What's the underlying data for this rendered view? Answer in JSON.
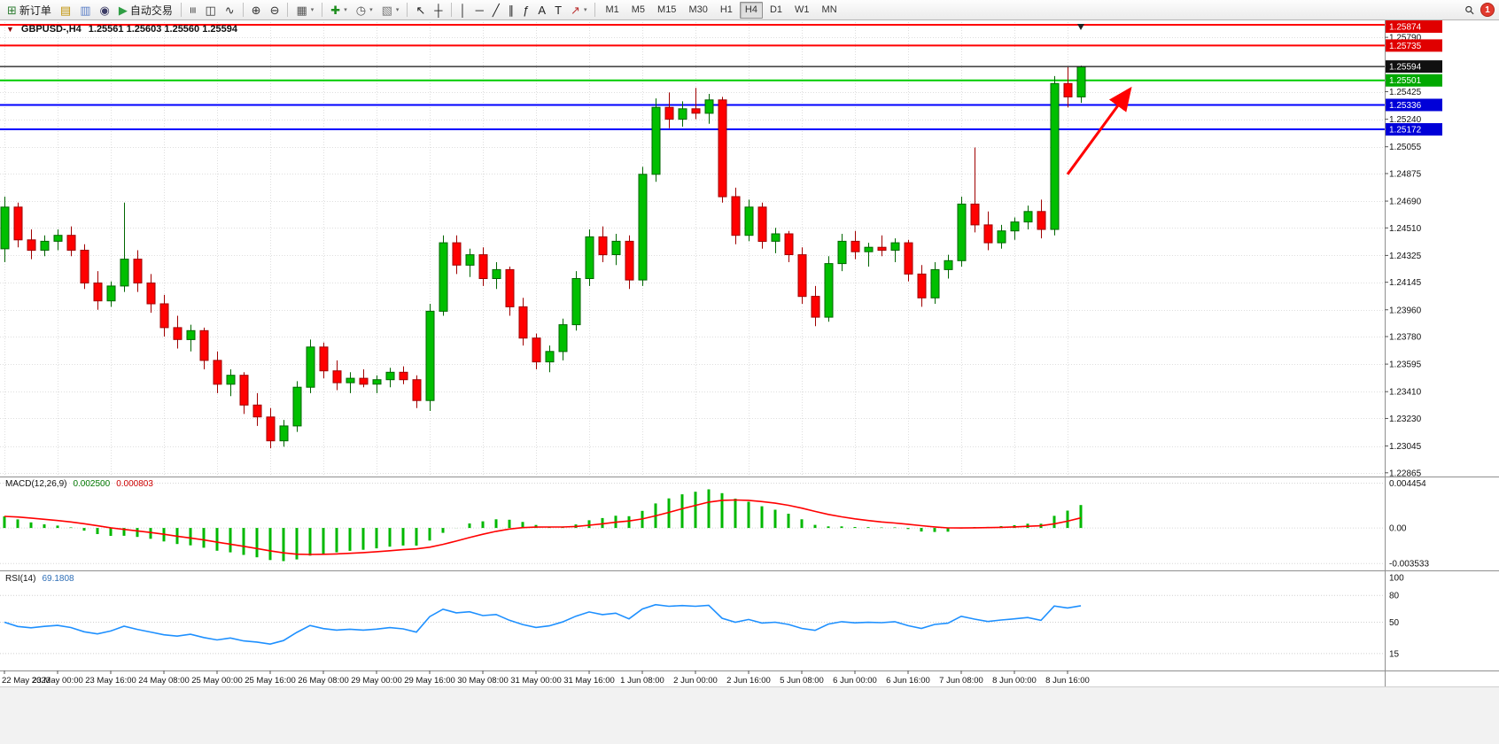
{
  "toolbar": {
    "items": [
      {
        "t": "btn",
        "name": "new-order-button",
        "glyph": "⊞",
        "color": "#2e7d32",
        "label": "新订单"
      },
      {
        "t": "btn",
        "name": "charts-button",
        "glyph": "▤",
        "color": "#c1930a"
      },
      {
        "t": "btn",
        "name": "profile-button",
        "glyph": "▥",
        "color": "#5b7fc7"
      },
      {
        "t": "btn",
        "name": "community-button",
        "glyph": "◉",
        "color": "#3d3d66"
      },
      {
        "t": "btn",
        "name": "auto-trading-button",
        "glyph": "▶",
        "color": "#2f9e44",
        "label": "自动交易"
      },
      {
        "t": "sep"
      },
      {
        "t": "btn",
        "name": "bar-chart-button",
        "glyph": "≡",
        "rot": 90,
        "color": "#333333"
      },
      {
        "t": "btn",
        "name": "candlestick-chart-button",
        "glyph": "◫",
        "color": "#333333"
      },
      {
        "t": "btn",
        "name": "line-chart-button",
        "glyph": "∿",
        "color": "#333333"
      },
      {
        "t": "sep"
      },
      {
        "t": "btn",
        "name": "zoom-in-button",
        "glyph": "⊕",
        "color": "#333333"
      },
      {
        "t": "btn",
        "name": "zoom-out-button",
        "glyph": "⊖",
        "color": "#333333"
      },
      {
        "t": "sep"
      },
      {
        "t": "btn",
        "name": "tile-windows-button",
        "glyph": "▦",
        "color": "#555555",
        "caret": true
      },
      {
        "t": "sep"
      },
      {
        "t": "btn",
        "name": "indicators-button",
        "glyph": "✚",
        "color": "#1e8e1e",
        "caret": true
      },
      {
        "t": "btn",
        "name": "periods-button",
        "glyph": "◷",
        "color": "#555555",
        "caret": true
      },
      {
        "t": "btn",
        "name": "templates-button",
        "glyph": "▧",
        "color": "#777777",
        "caret": true
      },
      {
        "t": "sep"
      },
      {
        "t": "btn",
        "name": "cursor-button",
        "glyph": "↖",
        "color": "#222222"
      },
      {
        "t": "btn",
        "name": "crosshair-button",
        "glyph": "┼",
        "color": "#222222"
      },
      {
        "t": "sep"
      },
      {
        "t": "btn",
        "name": "vertical-line-button",
        "glyph": "│",
        "color": "#222222"
      },
      {
        "t": "btn",
        "name": "horizontal-line-button",
        "glyph": "─",
        "color": "#222222"
      },
      {
        "t": "btn",
        "name": "trendline-button",
        "glyph": "╱",
        "color": "#222222"
      },
      {
        "t": "btn",
        "name": "channel-button",
        "glyph": "∥",
        "color": "#222222"
      },
      {
        "t": "btn",
        "name": "fibonacci-button",
        "glyph": "ƒ",
        "color": "#222222"
      },
      {
        "t": "btn",
        "name": "text-button",
        "glyph": "A",
        "color": "#222222"
      },
      {
        "t": "btn",
        "name": "label-button",
        "glyph": "T",
        "color": "#222222"
      },
      {
        "t": "btn",
        "name": "arrows-button",
        "glyph": "↗",
        "color": "#bb3333",
        "caret": true
      },
      {
        "t": "sep"
      },
      {
        "t": "tf"
      }
    ],
    "timeframes": [
      "M1",
      "M5",
      "M15",
      "M30",
      "H1",
      "H4",
      "D1",
      "W1",
      "MN"
    ],
    "active_timeframe": "H4",
    "right": [
      {
        "name": "search-button",
        "glyph": "⚲",
        "rot": -45,
        "color": "#333333"
      },
      {
        "name": "notifications-badge",
        "text": "1"
      }
    ]
  },
  "chart": {
    "title": "GBPUSD-,H4",
    "ohlc": "1.25561 1.25603 1.25560 1.25594",
    "one_click_glyph": "▼"
  },
  "indicators": {
    "macd": {
      "label": "MACD(12,26,9)",
      "value_main": "0.002500",
      "value_signal": "0.000803",
      "axis": {
        "top": "0.004454",
        "zero": "0.00",
        "bottom": "-0.003533"
      },
      "colors": {
        "histogram": "#00B800",
        "signal": "#FF0000"
      }
    },
    "rsi": {
      "label": "RSI(14)",
      "value": "69.1808",
      "axis": [
        "100",
        "80",
        "50",
        "15"
      ],
      "levels": [
        80,
        50,
        15
      ],
      "color": "#1E90FF"
    }
  },
  "chart_data": {
    "type": "candlestick",
    "symbol": "GBPUSD-",
    "timeframe": "H4",
    "y_range": [
      1.2284,
      1.2591
    ],
    "up_color": "#00BF00",
    "up_edge": "#006600",
    "down_color": "#FF0000",
    "down_edge": "#A00000",
    "candles": [
      [
        1.2437,
        1.2472,
        1.2428,
        1.2465
      ],
      [
        1.2465,
        1.2468,
        1.2438,
        1.2443
      ],
      [
        1.2443,
        1.245,
        1.243,
        1.2436
      ],
      [
        1.2436,
        1.2446,
        1.2432,
        1.2442
      ],
      [
        1.2442,
        1.245,
        1.2436,
        1.2446
      ],
      [
        1.2446,
        1.2452,
        1.2432,
        1.2436
      ],
      [
        1.2436,
        1.244,
        1.241,
        1.2414
      ],
      [
        1.2414,
        1.2422,
        1.2396,
        1.2402
      ],
      [
        1.2402,
        1.2415,
        1.2398,
        1.2412
      ],
      [
        1.2412,
        1.2468,
        1.2408,
        1.243
      ],
      [
        1.243,
        1.2436,
        1.2408,
        1.2414
      ],
      [
        1.2414,
        1.242,
        1.2394,
        1.24
      ],
      [
        1.24,
        1.2406,
        1.2378,
        1.2384
      ],
      [
        1.2384,
        1.2392,
        1.237,
        1.2376
      ],
      [
        1.2376,
        1.2386,
        1.2368,
        1.2382
      ],
      [
        1.2382,
        1.2384,
        1.2356,
        1.2362
      ],
      [
        1.2362,
        1.2368,
        1.234,
        1.2346
      ],
      [
        1.2346,
        1.2356,
        1.2338,
        1.2352
      ],
      [
        1.2352,
        1.2354,
        1.2326,
        1.2332
      ],
      [
        1.2332,
        1.234,
        1.2318,
        1.2324
      ],
      [
        1.2324,
        1.233,
        1.2303,
        1.2308
      ],
      [
        1.2308,
        1.2322,
        1.2304,
        1.2318
      ],
      [
        1.2318,
        1.2348,
        1.2314,
        1.2344
      ],
      [
        1.2344,
        1.2376,
        1.234,
        1.2371
      ],
      [
        1.2371,
        1.2374,
        1.235,
        1.2355
      ],
      [
        1.2355,
        1.2362,
        1.2342,
        1.2347
      ],
      [
        1.2347,
        1.2354,
        1.234,
        1.235
      ],
      [
        1.235,
        1.2356,
        1.2344,
        1.2346
      ],
      [
        1.2346,
        1.2352,
        1.234,
        1.2349
      ],
      [
        1.2349,
        1.2357,
        1.2344,
        1.2354
      ],
      [
        1.2354,
        1.2358,
        1.2346,
        1.2349
      ],
      [
        1.2349,
        1.2352,
        1.233,
        1.2335
      ],
      [
        1.2335,
        1.24,
        1.2328,
        1.2395
      ],
      [
        1.2395,
        1.2446,
        1.2392,
        1.2441
      ],
      [
        1.2441,
        1.2446,
        1.242,
        1.2426
      ],
      [
        1.2426,
        1.2437,
        1.2418,
        1.2433
      ],
      [
        1.2433,
        1.2438,
        1.2412,
        1.2417
      ],
      [
        1.2417,
        1.2428,
        1.241,
        1.2423
      ],
      [
        1.2423,
        1.2425,
        1.2392,
        1.2398
      ],
      [
        1.2398,
        1.2404,
        1.2372,
        1.2377
      ],
      [
        1.2377,
        1.238,
        1.2356,
        1.2361
      ],
      [
        1.2361,
        1.2372,
        1.2354,
        1.2368
      ],
      [
        1.2368,
        1.239,
        1.2362,
        1.2386
      ],
      [
        1.2386,
        1.2422,
        1.2382,
        1.2417
      ],
      [
        1.2417,
        1.245,
        1.2412,
        1.2445
      ],
      [
        1.2445,
        1.2452,
        1.2428,
        1.2433
      ],
      [
        1.2433,
        1.2447,
        1.2426,
        1.2442
      ],
      [
        1.2442,
        1.2446,
        1.241,
        1.2416
      ],
      [
        1.2416,
        1.2492,
        1.2412,
        1.2487
      ],
      [
        1.2487,
        1.2538,
        1.2482,
        1.2532
      ],
      [
        1.2532,
        1.2542,
        1.2518,
        1.2524
      ],
      [
        1.2524,
        1.2536,
        1.2519,
        1.2531
      ],
      [
        1.2531,
        1.2545,
        1.2524,
        1.2528
      ],
      [
        1.2528,
        1.2541,
        1.2521,
        1.2537
      ],
      [
        1.2537,
        1.2539,
        1.2468,
        1.2472
      ],
      [
        1.2472,
        1.2478,
        1.244,
        1.2446
      ],
      [
        1.2446,
        1.247,
        1.2442,
        1.2465
      ],
      [
        1.2465,
        1.2468,
        1.2437,
        1.2442
      ],
      [
        1.2442,
        1.2451,
        1.2434,
        1.2447
      ],
      [
        1.2447,
        1.2449,
        1.2428,
        1.2433
      ],
      [
        1.2433,
        1.2438,
        1.24,
        1.2405
      ],
      [
        1.2405,
        1.2412,
        1.2385,
        1.2391
      ],
      [
        1.2391,
        1.2432,
        1.2388,
        1.2427
      ],
      [
        1.2427,
        1.2447,
        1.2422,
        1.2442
      ],
      [
        1.2442,
        1.2449,
        1.243,
        1.2435
      ],
      [
        1.2435,
        1.2441,
        1.2425,
        1.2438
      ],
      [
        1.2438,
        1.2446,
        1.2432,
        1.2436
      ],
      [
        1.2436,
        1.2444,
        1.2428,
        1.2441
      ],
      [
        1.2441,
        1.2443,
        1.2415,
        1.242
      ],
      [
        1.242,
        1.2426,
        1.2398,
        1.2404
      ],
      [
        1.2404,
        1.2428,
        1.24,
        1.2423
      ],
      [
        1.2423,
        1.2433,
        1.2417,
        1.2429
      ],
      [
        1.2429,
        1.2472,
        1.2425,
        1.2467
      ],
      [
        1.2467,
        1.2505,
        1.2448,
        1.2453
      ],
      [
        1.2453,
        1.2462,
        1.2436,
        1.2441
      ],
      [
        1.2441,
        1.2453,
        1.2437,
        1.2449
      ],
      [
        1.2449,
        1.2458,
        1.2443,
        1.2455
      ],
      [
        1.2455,
        1.2466,
        1.245,
        1.2462
      ],
      [
        1.2462,
        1.247,
        1.2444,
        1.245
      ],
      [
        1.245,
        1.2553,
        1.2446,
        1.2548
      ],
      [
        1.2548,
        1.2559,
        1.2532,
        1.2539
      ],
      [
        1.2539,
        1.256,
        1.2535,
        1.25594
      ]
    ],
    "price_labels": [
      {
        "text": "1.25790",
        "value": 1.2579
      },
      {
        "text": "1.25425",
        "value": 1.25425
      },
      {
        "text": "1.25240",
        "value": 1.2524
      },
      {
        "text": "1.25055",
        "value": 1.25055
      },
      {
        "text": "1.24875",
        "value": 1.24875
      },
      {
        "text": "1.24690",
        "value": 1.2469
      },
      {
        "text": "1.24510",
        "value": 1.2451
      },
      {
        "text": "1.24325",
        "value": 1.24325
      },
      {
        "text": "1.24145",
        "value": 1.24145
      },
      {
        "text": "1.23960",
        "value": 1.2396
      },
      {
        "text": "1.23780",
        "value": 1.2378
      },
      {
        "text": "1.23595",
        "value": 1.23595
      },
      {
        "text": "1.23410",
        "value": 1.2341
      },
      {
        "text": "1.23230",
        "value": 1.2323
      },
      {
        "text": "1.23045",
        "value": 1.23045
      },
      {
        "text": "1.22865",
        "value": 1.22865
      }
    ],
    "price_boxes": [
      {
        "text": "1.25874",
        "value": 1.25874,
        "bg": "#E00000",
        "fg": "#FFFFFF"
      },
      {
        "text": "1.25735",
        "value": 1.25735,
        "bg": "#E00000",
        "fg": "#FFFFFF"
      },
      {
        "text": "1.25594",
        "value": 1.25594,
        "bg": "#101010",
        "fg": "#FFFFFF"
      },
      {
        "text": "1.25501",
        "value": 1.25501,
        "bg": "#00A800",
        "fg": "#FFFFFF"
      },
      {
        "text": "1.25336",
        "value": 1.25336,
        "bg": "#0000D8",
        "fg": "#FFFFFF"
      },
      {
        "text": "1.25172",
        "value": 1.25172,
        "bg": "#0000D8",
        "fg": "#FFFFFF"
      }
    ],
    "h_lines": [
      {
        "value": 1.25874,
        "color": "#FF0000",
        "w": 2
      },
      {
        "value": 1.25735,
        "color": "#FF0000",
        "w": 2
      },
      {
        "value": 1.25501,
        "color": "#00CC00",
        "w": 2
      },
      {
        "value": 1.25336,
        "color": "#0000FF",
        "w": 2
      },
      {
        "value": 1.25172,
        "color": "#0000FF",
        "w": 2
      }
    ],
    "current_price": {
      "value": 1.25594,
      "color": "#101010"
    },
    "x_labels": [
      "22 May 2023",
      "23 May 00:00",
      "23 May 16:00",
      "24 May 08:00",
      "25 May 00:00",
      "25 May 16:00",
      "26 May 08:00",
      "29 May 00:00",
      "29 May 16:00",
      "30 May 08:00",
      "31 May 00:00",
      "31 May 16:00",
      "1 Jun 08:00",
      "2 Jun 00:00",
      "2 Jun 16:00",
      "5 Jun 08:00",
      "6 Jun 00:00",
      "6 Jun 16:00",
      "7 Jun 08:00",
      "8 Jun 00:00",
      "8 Jun 16:00"
    ],
    "candles_per_label": 4,
    "sub_indicators": [
      {
        "type": "macd",
        "params": [
          12,
          26,
          9
        ]
      },
      {
        "type": "rsi",
        "params": [
          14
        ]
      }
    ],
    "annotations": {
      "arrow": {
        "from": {
          "candle": 80,
          "price": 1.2487
        },
        "to": {
          "candle": 84.6,
          "price": 1.2543
        },
        "color": "#FF0000",
        "width": 3
      },
      "bar_marker": {
        "candle": 81
      }
    }
  }
}
